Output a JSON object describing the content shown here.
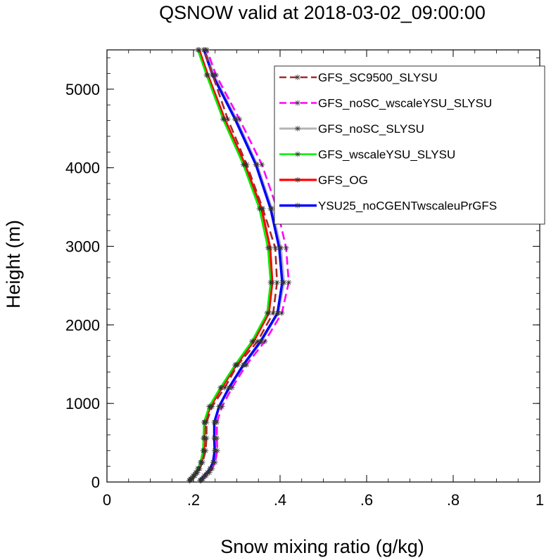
{
  "chart_data": {
    "type": "line",
    "title": "QSNOW valid at 2018-03-02_09:00:00",
    "xlabel": "Snow mixing ratio (g/kg)",
    "ylabel": "Height (m)",
    "xlim": [
      0,
      1
    ],
    "ylim": [
      0,
      5500
    ],
    "xticks": [
      0,
      0.2,
      0.4,
      0.6,
      0.8,
      1.0
    ],
    "xtick_labels": [
      "0",
      ".2",
      ".4",
      ".6",
      ".8",
      "1"
    ],
    "yticks": [
      0,
      1000,
      2000,
      3000,
      4000,
      5000
    ],
    "ytick_labels": [
      "0",
      "1000",
      "2000",
      "3000",
      "4000",
      "5000"
    ],
    "grid": false,
    "legend_position": "top-right",
    "heights": [
      20,
      40,
      80,
      120,
      170,
      250,
      400,
      560,
      760,
      960,
      1200,
      1490,
      1790,
      2150,
      2540,
      2980,
      3480,
      4040,
      4620,
      5180,
      5500
    ],
    "series": [
      {
        "name": "GFS_SC9500_SLYSU",
        "color": "#a52a2a",
        "dash": "dashed",
        "values": [
          0.192,
          0.196,
          0.203,
          0.209,
          0.214,
          0.221,
          0.228,
          0.23,
          0.23,
          0.243,
          0.272,
          0.302,
          0.348,
          0.384,
          0.393,
          0.389,
          0.36,
          0.323,
          0.279,
          0.244,
          0.224
        ]
      },
      {
        "name": "GFS_noSC_wscaleYSU_SLYSU",
        "color": "#ff00ff",
        "dash": "dashed",
        "values": [
          0.218,
          0.222,
          0.229,
          0.237,
          0.243,
          0.25,
          0.255,
          0.254,
          0.254,
          0.266,
          0.289,
          0.322,
          0.365,
          0.404,
          0.42,
          0.414,
          0.393,
          0.358,
          0.306,
          0.252,
          0.231
        ]
      },
      {
        "name": "GFS_noSC_SLYSU",
        "color": "#b4b4b4",
        "dash": "solid",
        "values": [
          0.216,
          0.219,
          0.226,
          0.233,
          0.239,
          0.246,
          0.25,
          0.249,
          0.249,
          0.26,
          0.283,
          0.317,
          0.357,
          0.396,
          0.409,
          0.402,
          0.381,
          0.347,
          0.299,
          0.247,
          0.227
        ]
      },
      {
        "name": "GFS_wscaleYSU_SLYSU",
        "color": "#00ee00",
        "dash": "solid",
        "values": [
          0.19,
          0.193,
          0.199,
          0.205,
          0.21,
          0.216,
          0.222,
          0.223,
          0.224,
          0.236,
          0.262,
          0.296,
          0.335,
          0.37,
          0.378,
          0.372,
          0.352,
          0.315,
          0.268,
          0.23,
          0.21
        ]
      },
      {
        "name": "GFS_OG",
        "color": "#ff0000",
        "dash": "solid",
        "values": [
          0.191,
          0.195,
          0.201,
          0.207,
          0.212,
          0.218,
          0.224,
          0.225,
          0.226,
          0.239,
          0.265,
          0.299,
          0.339,
          0.374,
          0.382,
          0.377,
          0.357,
          0.319,
          0.272,
          0.233,
          0.213
        ]
      },
      {
        "name": "YSU25_noCGENTwscaleuPrGFS",
        "color": "#0000ff",
        "dash": "solid",
        "values": [
          0.215,
          0.219,
          0.225,
          0.232,
          0.238,
          0.245,
          0.249,
          0.248,
          0.248,
          0.259,
          0.282,
          0.315,
          0.355,
          0.394,
          0.405,
          0.398,
          0.378,
          0.344,
          0.296,
          0.244,
          0.224
        ]
      }
    ]
  }
}
